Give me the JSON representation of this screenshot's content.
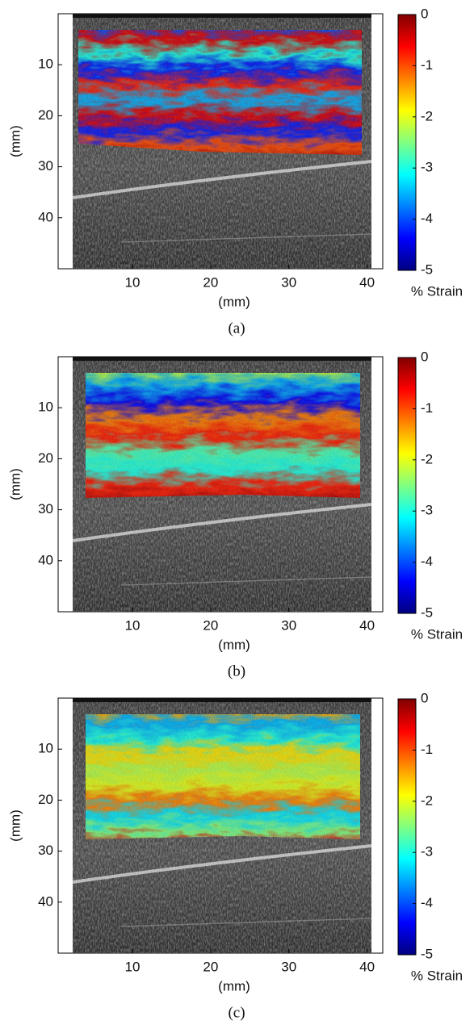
{
  "chart_data": [
    {
      "type": "heatmap",
      "xlabel": "(mm)",
      "ylabel": "(mm)",
      "xlim": [
        0.5,
        42
      ],
      "ylim": [
        50,
        0
      ],
      "xticks": [
        10,
        20,
        30,
        40
      ],
      "yticks": [
        10,
        20,
        30,
        40
      ],
      "colormap": "jet",
      "clim": [
        -5,
        0
      ],
      "cticks": [
        0,
        -1,
        -2,
        -3,
        -4,
        -5
      ],
      "colorbar_label": "% Strain",
      "caption": "(a)"
    },
    {
      "type": "heatmap",
      "xlabel": "(mm)",
      "ylabel": "(mm)",
      "xlim": [
        0.5,
        42
      ],
      "ylim": [
        50,
        0
      ],
      "xticks": [
        10,
        20,
        30,
        40
      ],
      "yticks": [
        10,
        20,
        30,
        40
      ],
      "colormap": "jet",
      "clim": [
        -5,
        0
      ],
      "cticks": [
        0,
        -1,
        -2,
        -3,
        -4,
        -5
      ],
      "colorbar_label": "% Strain",
      "caption": "(b)"
    },
    {
      "type": "heatmap",
      "xlabel": "(mm)",
      "ylabel": "(mm)",
      "xlim": [
        0.5,
        42
      ],
      "ylim": [
        50,
        0
      ],
      "xticks": [
        10,
        20,
        30,
        40
      ],
      "yticks": [
        10,
        20,
        30,
        40
      ],
      "colormap": "jet",
      "clim": [
        -5,
        0
      ],
      "cticks": [
        0,
        -1,
        -2,
        -3,
        -4,
        -5
      ],
      "colorbar_label": "% Strain",
      "caption": "(c)"
    }
  ]
}
